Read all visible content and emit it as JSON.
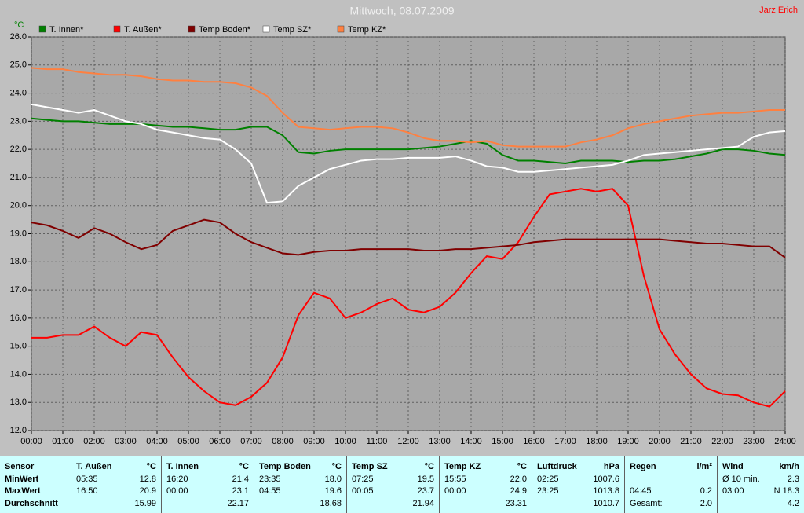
{
  "chart_data": {
    "type": "line",
    "title": "Mittwoch, 08.07.2009",
    "annotation": "Jarz Erich",
    "y_label": "°C",
    "legend": "top",
    "grid": true,
    "x": [
      0,
      0.5,
      1,
      1.5,
      2,
      2.5,
      3,
      3.5,
      4,
      4.5,
      5,
      5.5,
      6,
      6.5,
      7,
      7.5,
      8,
      8.5,
      9,
      9.5,
      10,
      10.5,
      11,
      11.5,
      12,
      12.5,
      13,
      13.5,
      14,
      14.5,
      15,
      15.5,
      16,
      16.5,
      17,
      17.5,
      18,
      18.5,
      19,
      19.5,
      20,
      20.5,
      21,
      21.5,
      22,
      22.5,
      23,
      23.5,
      24
    ],
    "xlim": [
      0,
      24
    ],
    "xticks": [
      {
        "value": 0,
        "label": "00:00"
      },
      {
        "value": 1,
        "label": "01:00"
      },
      {
        "value": 2,
        "label": "02:00"
      },
      {
        "value": 3,
        "label": "03:00"
      },
      {
        "value": 4,
        "label": "04:00"
      },
      {
        "value": 5,
        "label": "05:00"
      },
      {
        "value": 6,
        "label": "06:00"
      },
      {
        "value": 7,
        "label": "07:00"
      },
      {
        "value": 8,
        "label": "08:00"
      },
      {
        "value": 9,
        "label": "09:00"
      },
      {
        "value": 10,
        "label": "10:00"
      },
      {
        "value": 11,
        "label": "11:00"
      },
      {
        "value": 12,
        "label": "12:00"
      },
      {
        "value": 13,
        "label": "13:00"
      },
      {
        "value": 14,
        "label": "14:00"
      },
      {
        "value": 15,
        "label": "15:00"
      },
      {
        "value": 16,
        "label": "16:00"
      },
      {
        "value": 17,
        "label": "17:00"
      },
      {
        "value": 18,
        "label": "18:00"
      },
      {
        "value": 19,
        "label": "19:00"
      },
      {
        "value": 20,
        "label": "20:00"
      },
      {
        "value": 21,
        "label": "21:00"
      },
      {
        "value": 22,
        "label": "22:00"
      },
      {
        "value": 23,
        "label": "23:00"
      },
      {
        "value": 24,
        "label": "24:00"
      }
    ],
    "ylim": [
      12,
      26
    ],
    "yticks": [
      {
        "value": 12,
        "label": "12.0"
      },
      {
        "value": 13,
        "label": "13.0"
      },
      {
        "value": 14,
        "label": "14.0"
      },
      {
        "value": 15,
        "label": "15.0"
      },
      {
        "value": 16,
        "label": "16.0"
      },
      {
        "value": 17,
        "label": "17.0"
      },
      {
        "value": 18,
        "label": "18.0"
      },
      {
        "value": 19,
        "label": "19.0"
      },
      {
        "value": 20,
        "label": "20.0"
      },
      {
        "value": 21,
        "label": "21.0"
      },
      {
        "value": 22,
        "label": "22.0"
      },
      {
        "value": 23,
        "label": "23.0"
      },
      {
        "value": 24,
        "label": "24.0"
      },
      {
        "value": 25,
        "label": "25.0"
      },
      {
        "value": 26,
        "label": "26.0"
      }
    ],
    "series": [
      {
        "name": "T. Innen*",
        "color": "#008000",
        "values": [
          23.1,
          23.05,
          23.0,
          23.0,
          22.95,
          22.9,
          22.9,
          22.9,
          22.85,
          22.8,
          22.8,
          22.75,
          22.7,
          22.7,
          22.8,
          22.8,
          22.5,
          21.9,
          21.85,
          21.95,
          22.0,
          22.0,
          22.0,
          22.0,
          22.0,
          22.05,
          22.1,
          22.2,
          22.3,
          22.2,
          21.8,
          21.6,
          21.6,
          21.55,
          21.5,
          21.6,
          21.6,
          21.6,
          21.55,
          21.6,
          21.6,
          21.65,
          21.75,
          21.85,
          22.0,
          22.0,
          21.95,
          21.85,
          21.8
        ]
      },
      {
        "name": "T. Außen*",
        "color": "#ff0000",
        "values": [
          15.3,
          15.3,
          15.4,
          15.4,
          15.7,
          15.3,
          15.0,
          15.5,
          15.4,
          14.6,
          13.9,
          13.4,
          13.0,
          12.9,
          13.2,
          13.7,
          14.6,
          16.1,
          16.9,
          16.7,
          16.0,
          16.2,
          16.5,
          16.7,
          16.3,
          16.2,
          16.4,
          16.9,
          17.6,
          18.2,
          18.1,
          18.7,
          19.6,
          20.4,
          20.5,
          20.6,
          20.5,
          20.6,
          20.0,
          17.5,
          15.6,
          14.7,
          14.0,
          13.5,
          13.3,
          13.25,
          13.0,
          12.85,
          13.4
        ]
      },
      {
        "name": "Temp Boden*",
        "color": "#800000",
        "values": [
          19.4,
          19.3,
          19.1,
          18.85,
          19.2,
          19.0,
          18.7,
          18.45,
          18.6,
          19.1,
          19.3,
          19.5,
          19.4,
          19.0,
          18.7,
          18.5,
          18.3,
          18.25,
          18.35,
          18.4,
          18.4,
          18.45,
          18.45,
          18.45,
          18.45,
          18.4,
          18.4,
          18.45,
          18.45,
          18.5,
          18.55,
          18.6,
          18.7,
          18.75,
          18.8,
          18.8,
          18.8,
          18.8,
          18.8,
          18.8,
          18.8,
          18.75,
          18.7,
          18.65,
          18.65,
          18.6,
          18.55,
          18.55,
          18.15
        ]
      },
      {
        "name": "Temp SZ*",
        "color": "#ffffff",
        "values": [
          23.6,
          23.5,
          23.4,
          23.3,
          23.4,
          23.2,
          23.0,
          22.9,
          22.7,
          22.6,
          22.5,
          22.4,
          22.35,
          22.0,
          21.5,
          20.1,
          20.15,
          20.7,
          21.0,
          21.3,
          21.45,
          21.6,
          21.65,
          21.65,
          21.7,
          21.7,
          21.7,
          21.75,
          21.6,
          21.4,
          21.35,
          21.2,
          21.2,
          21.25,
          21.3,
          21.35,
          21.4,
          21.45,
          21.6,
          21.8,
          21.85,
          21.9,
          21.95,
          22.0,
          22.05,
          22.1,
          22.45,
          22.6,
          22.65
        ]
      },
      {
        "name": "Temp KZ*",
        "color": "#ff8040",
        "values": [
          24.9,
          24.85,
          24.85,
          24.75,
          24.7,
          24.65,
          24.65,
          24.6,
          24.5,
          24.45,
          24.45,
          24.4,
          24.4,
          24.35,
          24.2,
          23.9,
          23.3,
          22.8,
          22.75,
          22.7,
          22.75,
          22.8,
          22.8,
          22.75,
          22.6,
          22.4,
          22.3,
          22.3,
          22.25,
          22.3,
          22.15,
          22.1,
          22.1,
          22.1,
          22.1,
          22.25,
          22.35,
          22.5,
          22.75,
          22.9,
          23.0,
          23.1,
          23.2,
          23.25,
          23.3,
          23.3,
          23.35,
          23.4,
          23.4
        ]
      }
    ]
  },
  "table": {
    "row_labels": [
      "Sensor",
      "MinWert",
      "MaxWert",
      "Durchschnitt"
    ],
    "groups": [
      {
        "header": "T. Außen",
        "unit": "°C",
        "rows": [
          {
            "left": "05:35",
            "right": "12.8"
          },
          {
            "left": "16:50",
            "right": "20.9"
          },
          {
            "right": "15.99"
          }
        ]
      },
      {
        "header": "T. Innen",
        "unit": "°C",
        "rows": [
          {
            "left": "16:20",
            "right": "21.4"
          },
          {
            "left": "00:00",
            "right": "23.1"
          },
          {
            "right": "22.17"
          }
        ]
      },
      {
        "header": "Temp Boden",
        "unit": "°C",
        "rows": [
          {
            "left": "23:35",
            "right": "18.0"
          },
          {
            "left": "04:55",
            "right": "19.6"
          },
          {
            "right": "18.68"
          }
        ]
      },
      {
        "header": "Temp SZ",
        "unit": "°C",
        "rows": [
          {
            "left": "07:25",
            "right": "19.5"
          },
          {
            "left": "00:05",
            "right": "23.7"
          },
          {
            "right": "21.94"
          }
        ]
      },
      {
        "header": "Temp KZ",
        "unit": "°C",
        "rows": [
          {
            "left": "15:55",
            "right": "22.0"
          },
          {
            "left": "00:00",
            "right": "24.9"
          },
          {
            "right": "23.31"
          }
        ]
      },
      {
        "header": "Luftdruck",
        "unit": "hPa",
        "rows": [
          {
            "left": "02:25",
            "right": "1007.6"
          },
          {
            "left": "23:25",
            "right": "1013.8"
          },
          {
            "right": "1010.7"
          }
        ]
      },
      {
        "header": "Regen",
        "unit": "l/m²",
        "rows": [
          {},
          {
            "left": "04:45",
            "right": "0.2"
          },
          {
            "left": "Gesamt:",
            "right": "2.0"
          }
        ]
      },
      {
        "header": "Wind",
        "unit": "km/h",
        "rows": [
          {
            "left": "Ø 10 min.",
            "right": "2.3"
          },
          {
            "left": "03:00",
            "right": "N 18.3"
          },
          {
            "right": "4.2"
          }
        ]
      }
    ]
  }
}
